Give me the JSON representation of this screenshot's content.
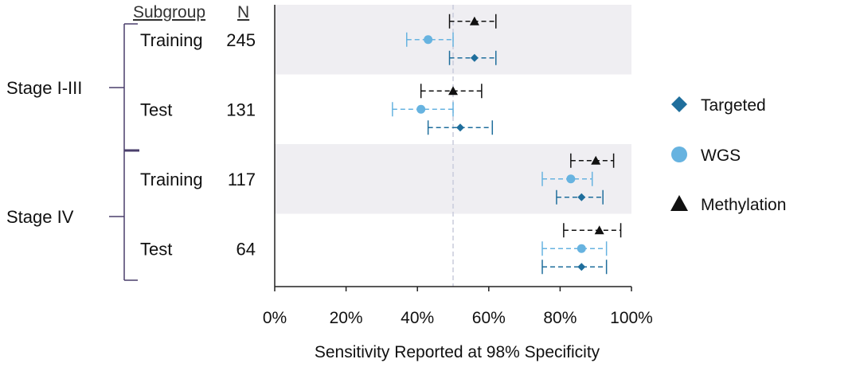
{
  "chart_data": {
    "type": "forest",
    "xlabel": "Sensitivity Reported at 98% Specificity",
    "xlim": [
      0,
      100
    ],
    "xticks": [
      0,
      20,
      40,
      60,
      80,
      100
    ],
    "xtick_labels": [
      "0%",
      "20%",
      "40%",
      "60%",
      "80%",
      "100%"
    ],
    "reference_line": 50,
    "headers": {
      "subgroup": "Subgroup",
      "n": "N"
    },
    "stages": [
      "Stage I-III",
      "Stage IV"
    ],
    "series": [
      {
        "name": "Targeted",
        "marker": "diamond",
        "color": "#1f6e9c"
      },
      {
        "name": "WGS",
        "marker": "circle",
        "color": "#67b3e0"
      },
      {
        "name": "Methylation",
        "marker": "triangle",
        "color": "#111111"
      }
    ],
    "groups": [
      {
        "stage": "Stage I-III",
        "subgroup": "Training",
        "n": "245",
        "shaded": true,
        "estimates": {
          "Methylation": {
            "value": 56,
            "low": 49,
            "high": 62
          },
          "WGS": {
            "value": 43,
            "low": 37,
            "high": 50
          },
          "Targeted": {
            "value": 56,
            "low": 49,
            "high": 62
          }
        }
      },
      {
        "stage": "Stage I-III",
        "subgroup": "Test",
        "n": "131",
        "shaded": false,
        "estimates": {
          "Methylation": {
            "value": 50,
            "low": 41,
            "high": 58
          },
          "WGS": {
            "value": 41,
            "low": 33,
            "high": 50
          },
          "Targeted": {
            "value": 52,
            "low": 43,
            "high": 61
          }
        }
      },
      {
        "stage": "Stage IV",
        "subgroup": "Training",
        "n": "117",
        "shaded": true,
        "estimates": {
          "Methylation": {
            "value": 90,
            "low": 83,
            "high": 95
          },
          "WGS": {
            "value": 83,
            "low": 75,
            "high": 89
          },
          "Targeted": {
            "value": 86,
            "low": 79,
            "high": 92
          }
        }
      },
      {
        "stage": "Stage IV",
        "subgroup": "Test",
        "n": "64",
        "shaded": false,
        "estimates": {
          "Methylation": {
            "value": 91,
            "low": 81,
            "high": 97
          },
          "WGS": {
            "value": 86,
            "low": 75,
            "high": 93
          },
          "Targeted": {
            "value": 86,
            "low": 75,
            "high": 93
          }
        }
      }
    ]
  }
}
